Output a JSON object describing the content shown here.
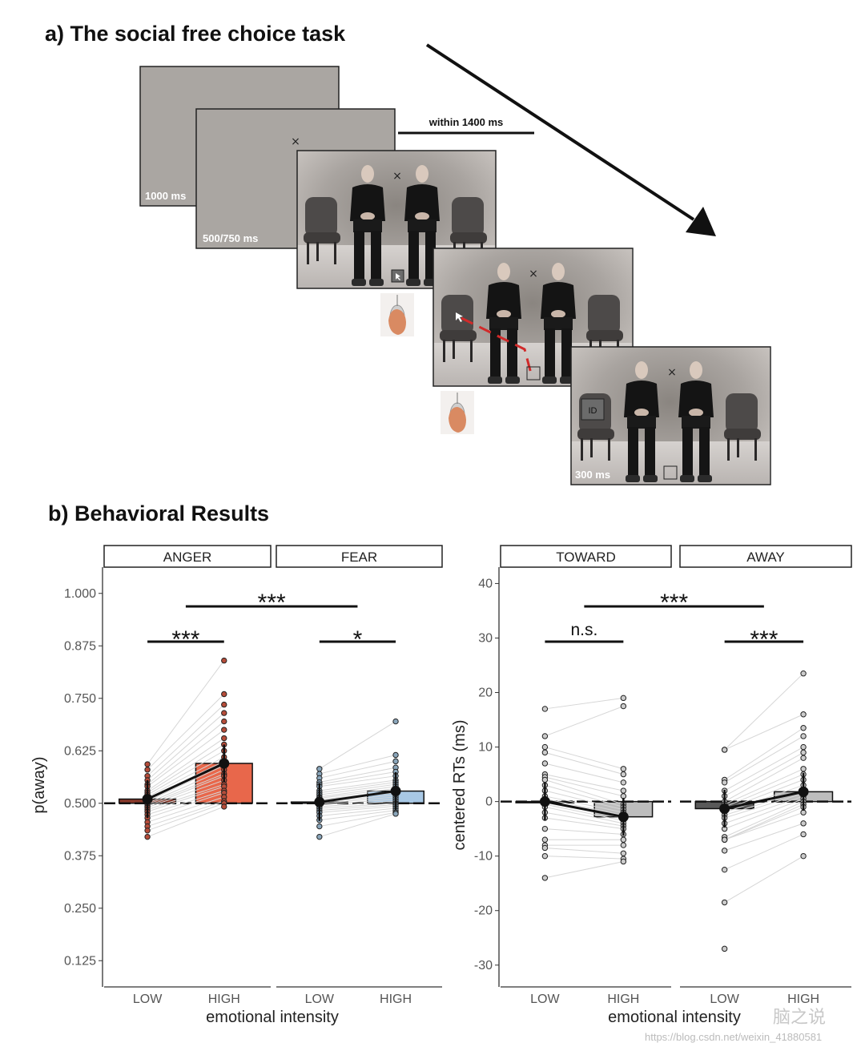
{
  "panel_a": {
    "title": "a) The social free choice task",
    "screens": [
      {
        "label": "1000 ms"
      },
      {
        "label": "500/750 ms"
      },
      {
        "label": ""
      },
      {
        "label": ""
      },
      {
        "label": "300 ms",
        "id_badge": "ID"
      }
    ],
    "timing_label": "within 1400 ms",
    "fixation_glyph": "×"
  },
  "panel_b": {
    "title": "b) Behavioral Results"
  },
  "chart_data": [
    {
      "type": "bar",
      "title": "",
      "xlabel": "emotional intensity",
      "ylabel": "p(away)",
      "ylim": [
        0.0625,
        1.0625
      ],
      "yticks": [
        "0.125",
        "0.250",
        "0.375",
        "0.500",
        "0.625",
        "0.750",
        "0.875",
        "1.000"
      ],
      "baseline": 0.5,
      "facets": [
        {
          "label": "ANGER",
          "categories": [
            "LOW",
            "HIGH"
          ],
          "means": [
            0.51,
            0.595
          ],
          "bar_colors": [
            "#8b3a2b",
            "#e8674b"
          ],
          "point_color": "#b64c39",
          "points": [
            [
              0.593,
              0.58,
              0.565,
              0.555,
              0.545,
              0.54,
              0.53,
              0.525,
              0.52,
              0.515,
              0.51,
              0.505,
              0.5,
              0.497,
              0.493,
              0.49,
              0.485,
              0.48,
              0.473,
              0.465,
              0.455,
              0.445,
              0.435,
              0.42
            ],
            [
              0.84,
              0.76,
              0.735,
              0.715,
              0.695,
              0.675,
              0.655,
              0.64,
              0.625,
              0.61,
              0.6,
              0.59,
              0.58,
              0.57,
              0.565,
              0.555,
              0.545,
              0.54,
              0.53,
              0.525,
              0.515,
              0.505,
              0.5,
              0.492
            ]
          ],
          "significance": "***"
        },
        {
          "label": "FEAR",
          "categories": [
            "LOW",
            "HIGH"
          ],
          "means": [
            0.503,
            0.529
          ],
          "bar_colors": [
            "#34566a",
            "#a8c8e5"
          ],
          "point_color": "#8aa6bb",
          "points": [
            [
              0.582,
              0.57,
              0.56,
              0.55,
              0.545,
              0.54,
              0.53,
              0.525,
              0.52,
              0.515,
              0.512,
              0.508,
              0.505,
              0.502,
              0.499,
              0.496,
              0.492,
              0.488,
              0.483,
              0.478,
              0.47,
              0.46,
              0.445,
              0.42
            ],
            [
              0.695,
              0.615,
              0.6,
              0.585,
              0.575,
              0.565,
              0.555,
              0.55,
              0.545,
              0.54,
              0.535,
              0.53,
              0.525,
              0.52,
              0.515,
              0.51,
              0.505,
              0.5,
              0.497,
              0.493,
              0.488,
              0.483,
              0.478,
              0.475
            ]
          ],
          "significance": "*"
        }
      ],
      "between_significance": "***"
    },
    {
      "type": "bar",
      "title": "",
      "xlabel": "emotional intensity",
      "ylabel": "centered RTs (ms)",
      "ylim": [
        -34,
        43
      ],
      "yticks": [
        "-30",
        "-20",
        "-10",
        "0",
        "10",
        "20",
        "30",
        "40"
      ],
      "baseline": 0,
      "facets": [
        {
          "label": "TOWARD",
          "categories": [
            "LOW",
            "HIGH"
          ],
          "means": [
            0.0,
            -2.8
          ],
          "bar_colors": [
            "#bdbdbd",
            "#bdbdbd"
          ],
          "point_color": "#cccccc",
          "points": [
            [
              17,
              12,
              10,
              9,
              7,
              5,
              4.5,
              4,
              3,
              2,
              1,
              0.5,
              0,
              -0.5,
              -1,
              -2,
              -3,
              -5,
              -7,
              -8,
              -8.5,
              -10,
              -14
            ],
            [
              19,
              17.5,
              6,
              5,
              3.5,
              2,
              1,
              -0.5,
              -1,
              -1.5,
              -2,
              -2.5,
              -3,
              -3.5,
              -4,
              -4.5,
              -5,
              -6,
              -7,
              -8,
              -9.5,
              -10.5,
              -11
            ]
          ],
          "significance": "n.s."
        },
        {
          "label": "AWAY",
          "categories": [
            "LOW",
            "HIGH"
          ],
          "means": [
            -1.3,
            1.8
          ],
          "bar_colors": [
            "#595959",
            "#bdbdbd"
          ],
          "point_color": "#cccccc",
          "points": [
            [
              9.5,
              9.5,
              4,
              3.5,
              2,
              1,
              0,
              -0.5,
              -1,
              -1.5,
              -2,
              -2.5,
              -3,
              -4,
              -5,
              -6.5,
              -7,
              -7,
              -7,
              -9,
              -12.5,
              -18.5,
              -27
            ],
            [
              23.5,
              16,
              13.5,
              12,
              10,
              9,
              8,
              6,
              5,
              4,
              3,
              2,
              1.5,
              1,
              0.5,
              0,
              -0.5,
              -1,
              -2,
              -4,
              -6,
              -10
            ]
          ],
          "significance": "***"
        }
      ],
      "between_significance": "***"
    }
  ],
  "watermarks": {
    "brand": "脑之说",
    "url": "https://blog.csdn.net/weixin_41880581"
  }
}
